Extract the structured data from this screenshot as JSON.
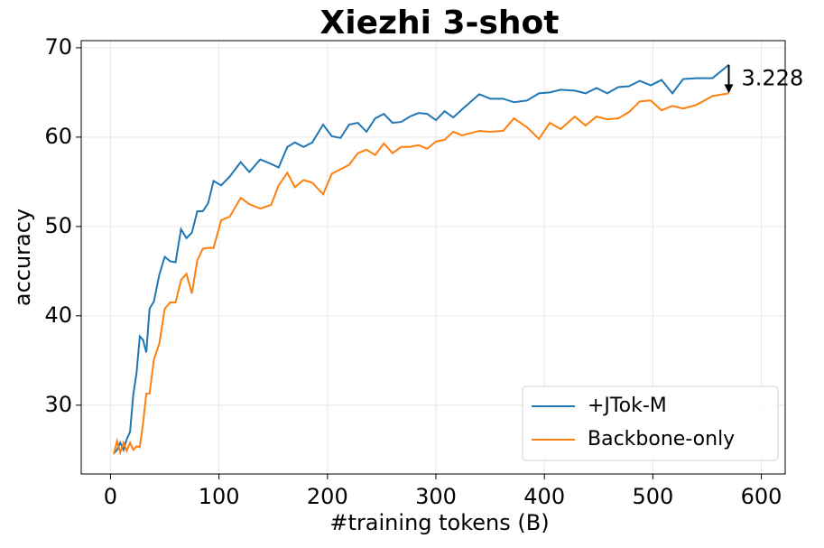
{
  "chart_data": {
    "type": "line",
    "title": "Xiezhi 3-shot",
    "x_label": "#training tokens (B)",
    "y_label": "accuracy",
    "x": [
      3,
      6,
      9,
      12,
      15,
      18,
      21,
      24,
      27,
      30,
      33,
      36,
      40,
      45,
      50,
      55,
      60,
      65,
      70,
      75,
      80,
      85,
      90,
      95,
      102,
      110,
      120,
      128,
      138,
      148,
      155,
      163,
      170,
      178,
      186,
      196,
      204,
      212,
      220,
      228,
      236,
      244,
      252,
      260,
      268,
      276,
      284,
      292,
      300,
      308,
      316,
      324,
      340,
      350,
      362,
      372,
      384,
      395,
      405,
      415,
      428,
      438,
      448,
      458,
      468,
      478,
      488,
      498,
      508,
      518,
      528,
      540,
      555,
      570
    ],
    "series": [
      {
        "name": "+JTok-M",
        "color": "#1f77b4",
        "values": [
          24.6,
          25.0,
          25.8,
          25.0,
          26.2,
          27.0,
          31.2,
          33.6,
          37.7,
          37.3,
          35.9,
          40.8,
          41.6,
          44.6,
          46.6,
          46.1,
          46.0,
          49.7,
          48.7,
          49.3,
          51.7,
          51.7,
          52.6,
          55.1,
          54.6,
          55.6,
          57.2,
          56.1,
          57.5,
          57.0,
          56.6,
          58.9,
          59.4,
          58.9,
          59.4,
          61.4,
          60.1,
          59.9,
          61.4,
          61.6,
          60.6,
          62.1,
          62.6,
          61.6,
          61.7,
          62.3,
          62.7,
          62.6,
          61.9,
          62.9,
          62.2,
          63.1,
          64.8,
          64.3,
          64.3,
          63.9,
          64.1,
          64.9,
          65.0,
          65.3,
          65.2,
          64.9,
          65.5,
          64.9,
          65.6,
          65.7,
          66.3,
          65.8,
          66.4,
          64.9,
          66.5,
          66.6,
          66.6,
          68.1
        ]
      },
      {
        "name": "Backbone-only",
        "color": "#ff7f0e",
        "values": [
          24.5,
          26.0,
          24.7,
          25.8,
          24.9,
          25.8,
          25.0,
          25.4,
          25.3,
          28.0,
          31.3,
          31.3,
          35.1,
          36.9,
          40.8,
          41.5,
          41.5,
          44.0,
          44.7,
          42.5,
          46.2,
          47.5,
          47.6,
          47.6,
          50.7,
          51.1,
          53.2,
          52.5,
          52.0,
          52.4,
          54.6,
          56.0,
          54.4,
          55.2,
          54.9,
          53.6,
          55.9,
          56.4,
          56.9,
          58.2,
          58.6,
          58.0,
          59.3,
          58.2,
          58.9,
          58.9,
          59.1,
          58.7,
          59.5,
          59.7,
          60.6,
          60.2,
          60.7,
          60.6,
          60.7,
          62.1,
          61.1,
          59.8,
          61.6,
          60.9,
          62.3,
          61.3,
          62.3,
          62.0,
          62.1,
          62.8,
          64.0,
          64.1,
          63.0,
          63.5,
          63.2,
          63.6,
          64.6,
          64.9
        ]
      }
    ],
    "annotation": "3.228",
    "xlim": [
      -27,
      622
    ],
    "ylim": [
      22.3,
      70.8
    ],
    "xticks": [
      0,
      100,
      200,
      300,
      400,
      500,
      600
    ],
    "yticks": [
      30,
      40,
      50,
      60,
      70
    ],
    "grid": true,
    "legend": "lower right"
  }
}
